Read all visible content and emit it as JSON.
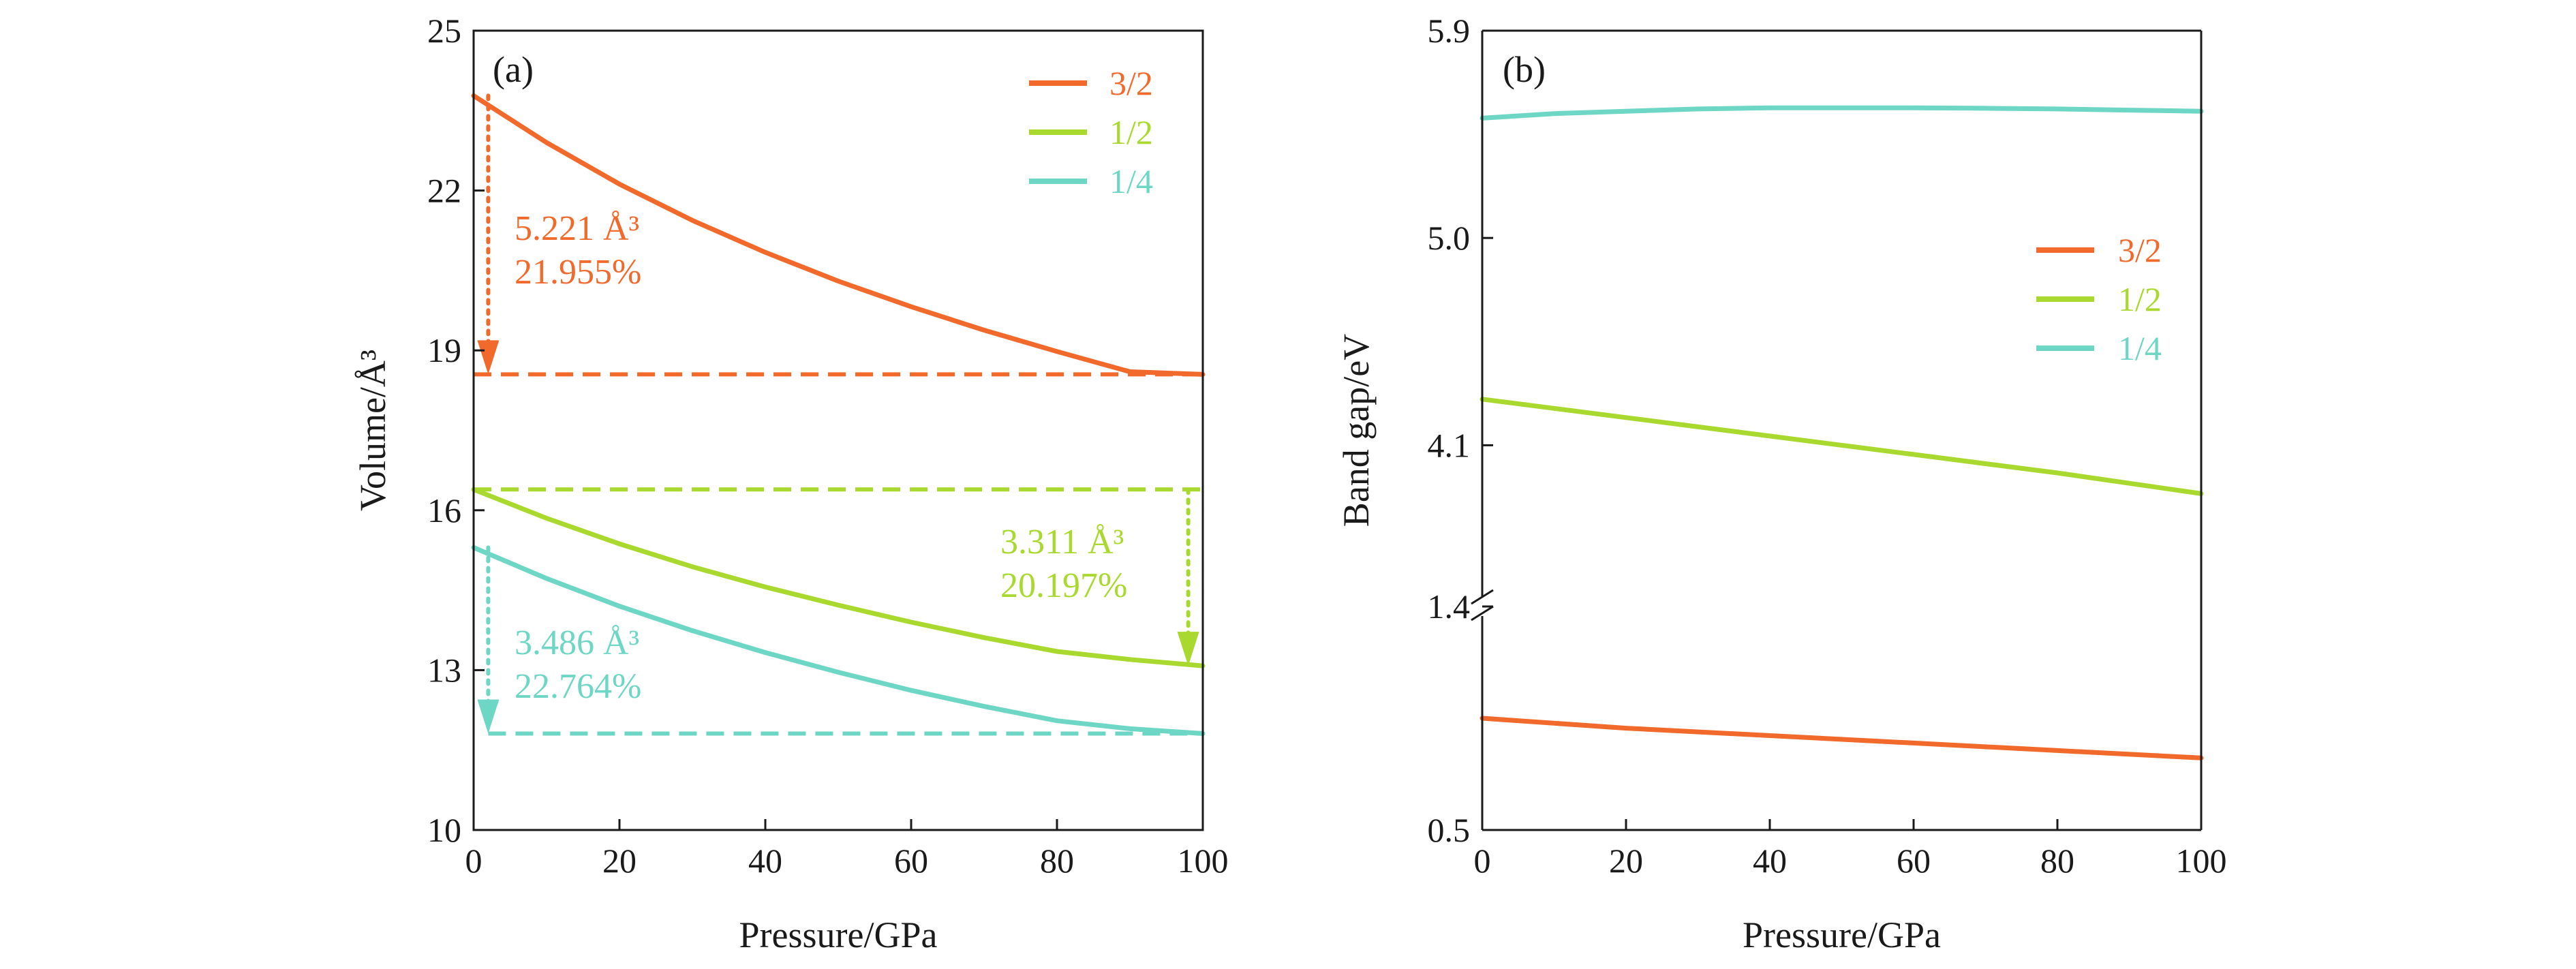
{
  "colors": {
    "s3_2": "#F26A2B",
    "s1_2": "#A9D92E",
    "s1_4": "#6ED6C4",
    "axis": "#1a1a1a"
  },
  "chart_data": [
    {
      "type": "line",
      "panel": "(a)",
      "xlabel": "Pressure/GPa",
      "ylabel": "Volume/Å³",
      "xlim": [
        0,
        100
      ],
      "ylim": [
        10,
        25
      ],
      "xticks": [
        "0",
        "20",
        "40",
        "60",
        "80",
        "100"
      ],
      "yticks": [
        "10",
        "13",
        "16",
        "19",
        "22",
        "25"
      ],
      "legend_position": "top-right",
      "series": [
        {
          "name": "3/2",
          "color": "#F26A2B",
          "x": [
            0,
            10,
            20,
            30,
            40,
            50,
            60,
            70,
            80,
            90,
            100
          ],
          "values": [
            23.78,
            22.9,
            22.12,
            21.44,
            20.84,
            20.3,
            19.82,
            19.38,
            18.98,
            18.6,
            18.55
          ]
        },
        {
          "name": "1/2",
          "color": "#A9D92E",
          "x": [
            0,
            10,
            20,
            30,
            40,
            50,
            60,
            70,
            80,
            90,
            100
          ],
          "values": [
            16.39,
            15.85,
            15.37,
            14.94,
            14.56,
            14.22,
            13.9,
            13.61,
            13.35,
            13.2,
            13.08
          ]
        },
        {
          "name": "1/4",
          "color": "#6ED6C4",
          "x": [
            0,
            10,
            20,
            30,
            40,
            50,
            60,
            70,
            80,
            90,
            100
          ],
          "values": [
            15.3,
            14.72,
            14.2,
            13.74,
            13.33,
            12.96,
            12.62,
            12.32,
            12.05,
            11.9,
            11.81
          ]
        }
      ],
      "annotations": [
        {
          "lines": [
            "5.221 Å³",
            "21.955%"
          ],
          "color": "#F26A2B",
          "series": "3/2",
          "drop_x": 2,
          "from": 23.78,
          "to": 18.55,
          "ref_y": 18.55
        },
        {
          "lines": [
            "3.311 Å³",
            "20.197%"
          ],
          "color": "#A9D92E",
          "series": "1/2",
          "drop_x": 98,
          "from": 16.39,
          "to": 13.08,
          "ref_y": 16.39
        },
        {
          "lines": [
            "3.486 Å³",
            "22.764%"
          ],
          "color": "#6ED6C4",
          "series": "1/4",
          "drop_x": 2,
          "from": 15.3,
          "to": 11.81,
          "ref_y": 11.81
        }
      ]
    },
    {
      "type": "line",
      "panel": "(b)",
      "xlabel": "Pressure/GPa",
      "ylabel": "Band gap/eV",
      "xlim": [
        0,
        100
      ],
      "broken_y_axis": true,
      "ylim_lower": [
        0.5,
        1.4
      ],
      "ylim_upper": [
        3.4,
        5.9
      ],
      "xticks": [
        "0",
        "20",
        "40",
        "60",
        "80",
        "100"
      ],
      "yticks": [
        "0.5",
        "1.4",
        "4.1",
        "5.0",
        "5.9"
      ],
      "legend_position": "center-right",
      "series": [
        {
          "name": "3/2",
          "color": "#F26A2B",
          "x": [
            0,
            20,
            40,
            60,
            80,
            100
          ],
          "values": [
            0.95,
            0.91,
            0.88,
            0.85,
            0.82,
            0.79
          ]
        },
        {
          "name": "1/2",
          "color": "#A9D92E",
          "x": [
            0,
            20,
            40,
            60,
            80,
            100
          ],
          "values": [
            4.3,
            4.22,
            4.14,
            4.06,
            3.98,
            3.89
          ]
        },
        {
          "name": "1/4",
          "color": "#6ED6C4",
          "x": [
            0,
            10,
            20,
            30,
            40,
            50,
            60,
            70,
            80,
            90,
            100
          ],
          "values": [
            5.52,
            5.54,
            5.55,
            5.56,
            5.565,
            5.565,
            5.565,
            5.563,
            5.56,
            5.555,
            5.55
          ]
        }
      ]
    }
  ]
}
